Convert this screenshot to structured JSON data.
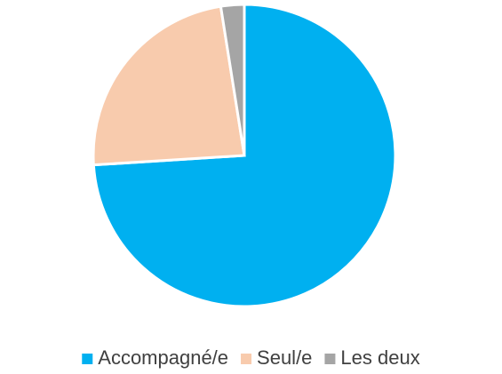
{
  "chart_data": {
    "type": "pie",
    "categories": [
      "Accompagné/e",
      "Seul/e",
      "Les deux"
    ],
    "values": [
      74,
      23.5,
      2.5
    ],
    "colors": [
      "#00b0f0",
      "#f8cbad",
      "#a5a5a5"
    ],
    "legend": "bottom"
  }
}
